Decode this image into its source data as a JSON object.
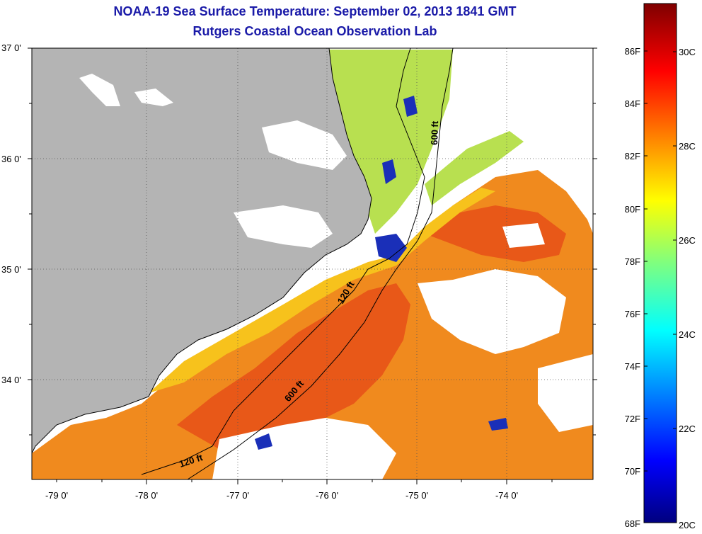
{
  "header": {
    "title": "NOAA-19 Sea Surface Temperature:  September 02, 2013 1841 GMT",
    "subtitle": "Rutgers Coastal Ocean Observation Lab"
  },
  "map": {
    "lat_labels": [
      "37 0'",
      "36 0'",
      "35 0'",
      "34 0'"
    ],
    "lon_labels": [
      "-79 0'",
      "-78 0'",
      "-77 0'",
      "-76 0'",
      "-75 0'",
      "-74 0'"
    ],
    "depth_labels": [
      "600 ft",
      "120 ft",
      "600 ft",
      "120 ft"
    ]
  },
  "colorbar": {
    "fahrenheit": [
      "86F",
      "84F",
      "82F",
      "80F",
      "78F",
      "76F",
      "74F",
      "72F",
      "70F",
      "68F"
    ],
    "celsius": [
      "30C",
      "28C",
      "26C",
      "24C",
      "22C",
      "20C"
    ]
  },
  "colors": {
    "land": "#b4b4b4",
    "warm": "#f08a1e",
    "hot": "#e85818",
    "mid": "#f7c21c",
    "cool": "#b8e050",
    "cold": "#1a2fb8",
    "title": "#1a1aa8"
  }
}
